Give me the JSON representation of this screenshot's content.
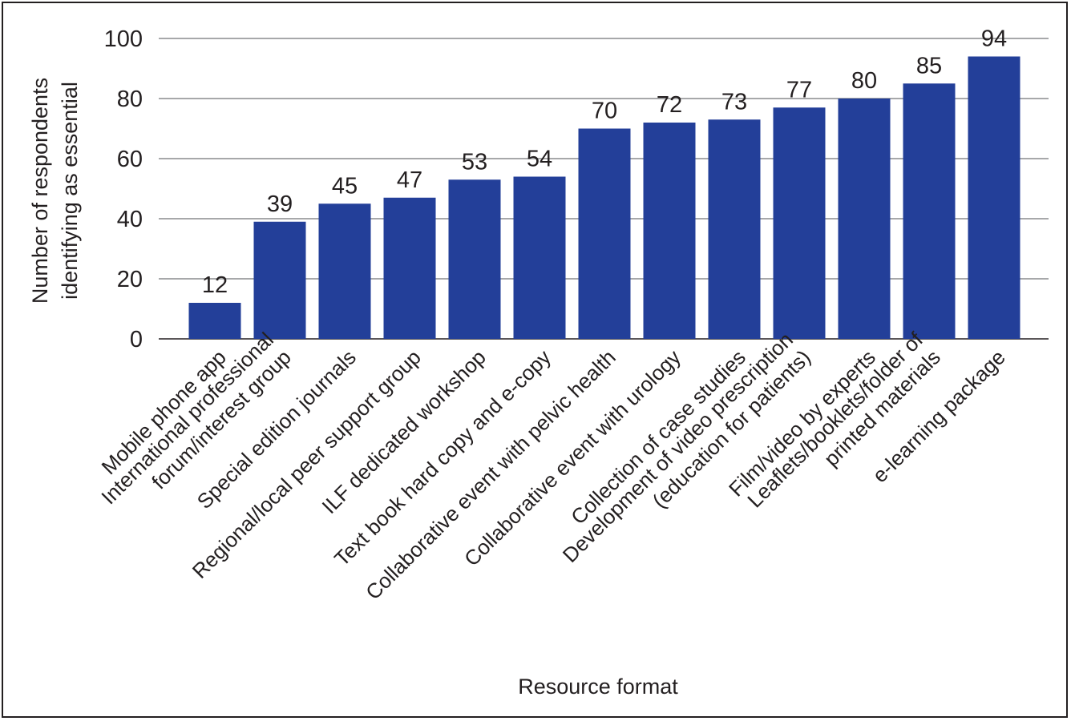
{
  "chart_data": {
    "type": "bar",
    "title": "",
    "xlabel": "Resource format",
    "ylabel_lines": [
      "Number of respondents",
      "identifying as essential"
    ],
    "ylim": [
      0,
      100
    ],
    "yticks": [
      "0",
      "20",
      "40",
      "60",
      "80",
      "100"
    ],
    "ytick_values": [
      0,
      20,
      40,
      60,
      80,
      100
    ],
    "grid": true,
    "bar_color": "#233f99",
    "grid_color": "#8a8c8e",
    "text_color": "#231f20",
    "categories": [
      [
        "Mobile phone app"
      ],
      [
        "International professional",
        "forum/interest group"
      ],
      [
        "Special edition journals"
      ],
      [
        "Regional/local peer support group"
      ],
      [
        "ILF dedicated workshop"
      ],
      [
        "Text book hard copy and e-copy"
      ],
      [
        "Collaborative event with pelvic health"
      ],
      [
        "Collaborative event with urology"
      ],
      [
        "Collection of case studies"
      ],
      [
        "Development of video prescription",
        "(education for patients)"
      ],
      [
        "Film/video by experts"
      ],
      [
        "Leaflets/booklets/folder of",
        "printed materials"
      ],
      [
        "e-learning package"
      ]
    ],
    "values": [
      12,
      39,
      45,
      47,
      53,
      54,
      70,
      72,
      73,
      77,
      80,
      85,
      94
    ],
    "value_labels": [
      "12",
      "39",
      "45",
      "47",
      "53",
      "54",
      "70",
      "72",
      "73",
      "77",
      "80",
      "85",
      "94"
    ]
  }
}
